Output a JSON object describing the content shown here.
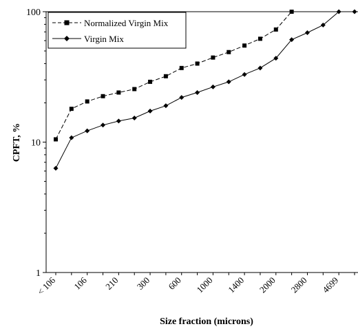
{
  "chart_data": {
    "type": "line",
    "xlabel": "Size fraction (microns)",
    "ylabel": "CPFT, %",
    "yscale": "log",
    "ylim": [
      1,
      100
    ],
    "yticks": [
      "1",
      "10",
      "100"
    ],
    "xtick_labels": [
      "< 106",
      "106",
      "210",
      "300",
      "600",
      "1000",
      "1400",
      "2000",
      "2800",
      "4699"
    ],
    "grid": false,
    "legend_position": "top-left",
    "series": [
      {
        "name": "Normalized Virgin Mix",
        "style": "dashed",
        "marker": "square",
        "color": "#000000",
        "values": [
          10.5,
          18,
          20.5,
          22.5,
          24,
          25.5,
          29,
          32,
          37,
          40,
          44.5,
          49,
          55,
          62,
          73,
          100
        ]
      },
      {
        "name": "Virgin Mix",
        "style": "solid",
        "marker": "diamond",
        "color": "#000000",
        "values": [
          6.3,
          10.8,
          12.2,
          13.5,
          14.5,
          15.3,
          17.3,
          19,
          22,
          24,
          26.5,
          29,
          33,
          37,
          44,
          61,
          69,
          79,
          100,
          100
        ]
      }
    ]
  }
}
